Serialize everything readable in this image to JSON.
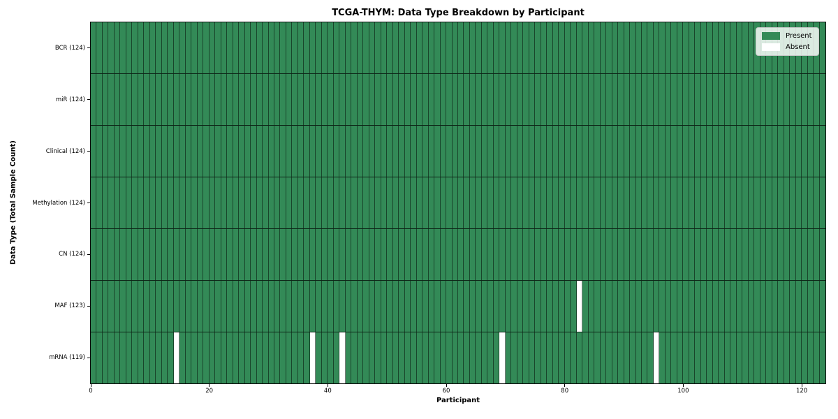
{
  "chart_data": {
    "type": "heatmap",
    "title": "TCGA-THYM: Data Type Breakdown by Participant",
    "xlabel": "Participant",
    "ylabel": "Data Type (Total Sample Count)",
    "x_range": [
      0,
      124
    ],
    "n_participants": 124,
    "x_ticks": [
      0,
      20,
      40,
      60,
      80,
      100,
      120
    ],
    "row_order": "top-to-bottom",
    "grid": "cell-edges",
    "legend_position": "upper-right",
    "legend": [
      {
        "label": "Present",
        "color": "#338a57"
      },
      {
        "label": "Absent",
        "color": "#ffffff"
      }
    ],
    "rows": [
      {
        "data_type": "BCR",
        "label": "BCR (124)",
        "present_count": 124,
        "absent_participants": []
      },
      {
        "data_type": "miR",
        "label": "miR (124)",
        "present_count": 124,
        "absent_participants": []
      },
      {
        "data_type": "Clinical",
        "label": "Clinical (124)",
        "present_count": 124,
        "absent_participants": []
      },
      {
        "data_type": "Methylation",
        "label": "Methylation (124)",
        "present_count": 124,
        "absent_participants": []
      },
      {
        "data_type": "CN",
        "label": "CN (124)",
        "present_count": 124,
        "absent_participants": []
      },
      {
        "data_type": "MAF",
        "label": "MAF (123)",
        "present_count": 123,
        "absent_participants": [
          82
        ]
      },
      {
        "data_type": "mRNA",
        "label": "mRNA (119)",
        "present_count": 119,
        "absent_participants": [
          14,
          37,
          42,
          69,
          95
        ]
      }
    ],
    "colors": {
      "present": "#338a57",
      "absent": "#ffffff",
      "cell_edge": "rgba(0,0,0,0.5)",
      "row_divider": "rgba(0,0,0,0.75)",
      "spine": "#0a0a0a",
      "text": "#000000",
      "background": "#ffffff"
    }
  }
}
